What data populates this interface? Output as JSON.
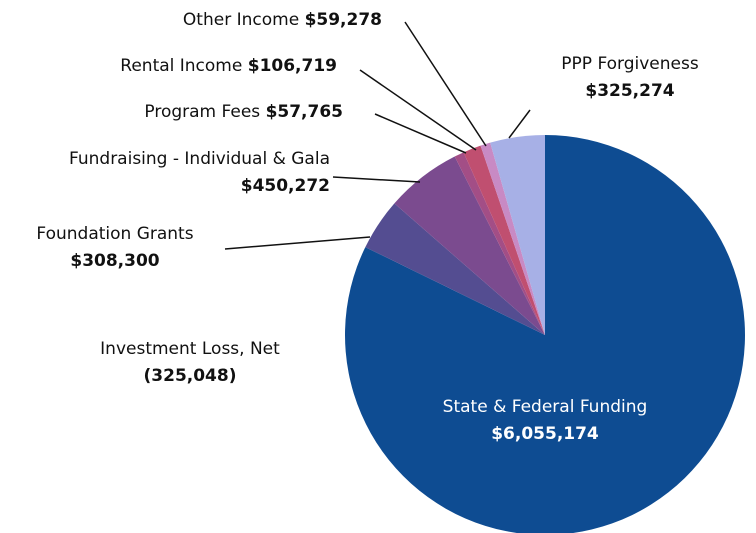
{
  "chart_data": {
    "type": "pie",
    "categories": [
      "State & Federal Funding",
      "Investment Loss, Net",
      "Foundation Grants",
      "Fundraising - Individual & Gala",
      "Program Fees",
      "Rental Income",
      "Other Income",
      "PPP Forgiveness"
    ],
    "values": [
      6055174,
      -325048,
      308300,
      450272,
      57765,
      106719,
      59278,
      325274
    ],
    "value_labels": [
      "$6,055,174",
      "(325,048)",
      "$308,300",
      "$450,272",
      "$57,765",
      "$106,719",
      "$59,278",
      "$325,274"
    ],
    "colors": [
      "#0e4c92",
      "#3b4a8e",
      "#544d91",
      "#7b4b8f",
      "#a34e86",
      "#c04f70",
      "#c88ac4",
      "#a7b0e6"
    ]
  }
}
